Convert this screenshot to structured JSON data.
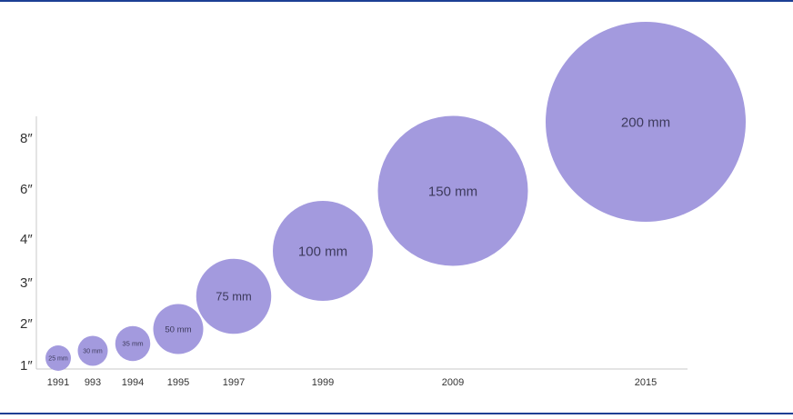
{
  "theme": {
    "bubble_color": "#a39ade",
    "rule_color": "#1c3f94",
    "axis_color": "#c8c8c8",
    "text_color": "#333333"
  },
  "chart_data": {
    "type": "scatter",
    "title": "",
    "xlabel": "",
    "ylabel": "",
    "y_ticks": [
      "1″",
      "2″",
      "3″",
      "4″",
      "6″",
      "8″"
    ],
    "points": [
      {
        "year_label": "1991",
        "label": "25 mm",
        "diameter_mm": 25
      },
      {
        "year_label": "993",
        "label": "30 mm",
        "diameter_mm": 30
      },
      {
        "year_label": "1994",
        "label": "35 mm",
        "diameter_mm": 35
      },
      {
        "year_label": "1995",
        "label": "50 mm",
        "diameter_mm": 50
      },
      {
        "year_label": "1997",
        "label": "75 mm",
        "diameter_mm": 75
      },
      {
        "year_label": "1999",
        "label": "100 mm",
        "diameter_mm": 100
      },
      {
        "year_label": "2009",
        "label": "150 mm",
        "diameter_mm": 150
      },
      {
        "year_label": "2015",
        "label": "200 mm",
        "diameter_mm": 200
      }
    ]
  }
}
